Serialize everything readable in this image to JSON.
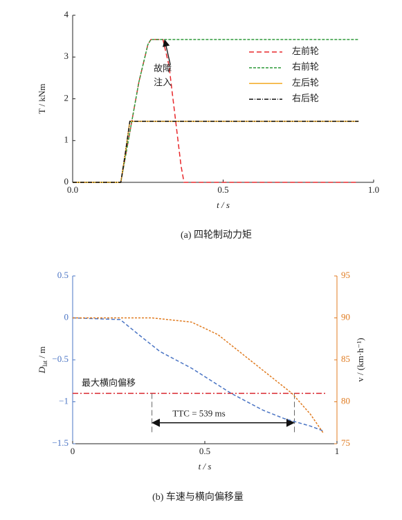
{
  "chart_data": [
    {
      "type": "line",
      "caption": "(a) 四轮制动力矩",
      "xlabel": "t / s",
      "ylabel": "T / kNm",
      "xlim": [
        0,
        1
      ],
      "ylim": [
        0,
        4
      ],
      "xticks": [
        {
          "value": 0,
          "label": "0.0"
        },
        {
          "value": 0.5,
          "label": "0.5"
        },
        {
          "value": 1,
          "label": "1.0"
        }
      ],
      "yticks": [
        0,
        1,
        2,
        3,
        4
      ],
      "legend": "upper right",
      "annotation": {
        "lines": [
          "故障",
          "注入"
        ],
        "xy": [
          0.306,
          3.42
        ]
      },
      "series": [
        {
          "name": "左前轮",
          "color": "#e8262a",
          "dash": "7,4",
          "x": [
            0,
            0.16,
            0.18,
            0.2,
            0.22,
            0.25,
            0.26,
            0.3,
            0.32,
            0.34,
            0.36,
            0.37,
            0.95
          ],
          "values": [
            0,
            0,
            0.8,
            1.6,
            2.4,
            3.3,
            3.42,
            3.42,
            2.8,
            1.6,
            0.4,
            0,
            0
          ]
        },
        {
          "name": "右前轮",
          "color": "#2e9a3a",
          "dash": "4,2",
          "x": [
            0,
            0.16,
            0.18,
            0.2,
            0.22,
            0.25,
            0.26,
            0.95
          ],
          "values": [
            0,
            0,
            0.8,
            1.6,
            2.4,
            3.3,
            3.42,
            3.42
          ]
        },
        {
          "name": "左后轮",
          "color": "#f2a81d",
          "dash": "none",
          "x": [
            0,
            0.16,
            0.175,
            0.19,
            0.95
          ],
          "values": [
            0,
            0,
            0.7,
            1.46,
            1.46
          ]
        },
        {
          "name": "右后轮",
          "color": "#111111",
          "dash": "6,2,1,2",
          "x": [
            0,
            0.16,
            0.175,
            0.19,
            0.95
          ],
          "values": [
            0,
            0,
            0.7,
            1.46,
            1.46
          ]
        }
      ]
    },
    {
      "type": "line",
      "caption": "(b) 车速与横向偏移量",
      "xlabel": "t / s",
      "ylabel": {
        "main": "D",
        "sub": "lat",
        "unit": " / m"
      },
      "y2label": "v / (km·h⁻¹)",
      "xlim": [
        0,
        1
      ],
      "ylim": [
        -1.5,
        0.5
      ],
      "y2lim": [
        75,
        95
      ],
      "xticks": [
        0,
        0.5,
        1
      ],
      "yticks": [
        {
          "value": -1.5,
          "label": "−1.5"
        },
        {
          "value": -1,
          "label": "−1"
        },
        {
          "value": -0.5,
          "label": "−0.5"
        },
        0,
        0.5
      ],
      "y2ticks": [
        75,
        80,
        85,
        90,
        95
      ],
      "y_axis_color": "#4a74c4",
      "y2_axis_color": "#e07b20",
      "threshold": {
        "value": -0.9,
        "label": "最大横向偏移",
        "color": "#d9262e"
      },
      "ttc": {
        "x": [
          0.3,
          0.839
        ],
        "y": -1.25,
        "label": "TTC = 539 ms"
      },
      "series": [
        {
          "color": "#4a74c4",
          "dash": "5,3",
          "x": [
            0,
            0.18,
            0.25,
            0.33,
            0.45,
            0.6,
            0.72,
            0.8,
            0.9,
            0.95
          ],
          "values": [
            0,
            -0.02,
            -0.2,
            -0.4,
            -0.6,
            -0.9,
            -1.1,
            -1.2,
            -1.29,
            -1.35
          ]
        },
        {
          "color": "#e07b20",
          "dash": "3,2",
          "axis": "y2",
          "x": [
            0,
            0.3,
            0.45,
            0.55,
            0.65,
            0.75,
            0.83,
            0.9,
            0.95
          ],
          "values": [
            90,
            90,
            89.5,
            88,
            85.5,
            83,
            81,
            78.5,
            76.2
          ]
        }
      ]
    }
  ]
}
